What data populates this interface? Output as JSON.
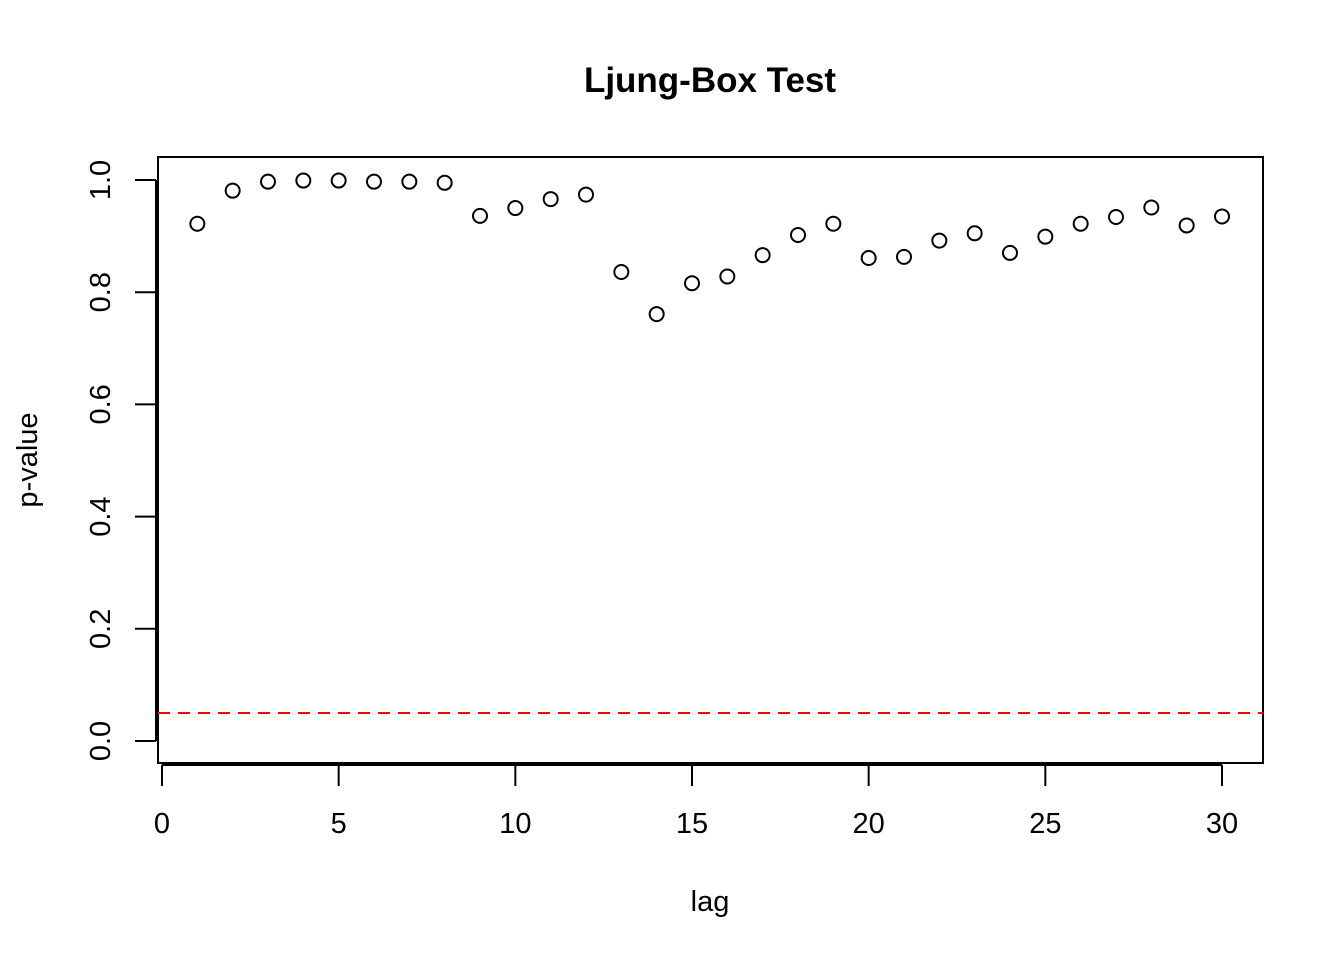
{
  "chart_data": {
    "type": "scatter",
    "title": "Ljung-Box Test",
    "xlabel": "lag",
    "ylabel": "p-value",
    "xlim": [
      0,
      30
    ],
    "ylim": [
      0,
      1
    ],
    "x_ticks": [
      0,
      5,
      10,
      15,
      20,
      25,
      30
    ],
    "y_ticks": [
      0.0,
      0.2,
      0.4,
      0.6,
      0.8,
      1.0
    ],
    "y_tick_labels": [
      "0.0",
      "0.2",
      "0.4",
      "0.6",
      "0.8",
      "1.0"
    ],
    "grid": false,
    "legend": "none",
    "marker": "open-circle",
    "marker_color": "#000000",
    "series": [
      {
        "x": [
          1,
          2,
          3,
          4,
          5,
          6,
          7,
          8,
          9,
          10,
          11,
          12,
          13,
          14,
          15,
          16,
          17,
          18,
          19,
          20,
          21,
          22,
          23,
          24,
          25,
          26,
          27,
          28,
          29,
          30
        ],
        "y": [
          0.922,
          0.981,
          0.997,
          0.999,
          0.999,
          0.997,
          0.997,
          0.995,
          0.936,
          0.95,
          0.966,
          0.974,
          0.836,
          0.761,
          0.816,
          0.828,
          0.866,
          0.902,
          0.922,
          0.861,
          0.863,
          0.892,
          0.905,
          0.87,
          0.899,
          0.922,
          0.934,
          0.951,
          0.919,
          0.935
        ]
      }
    ],
    "reference_line": {
      "y": 0.05,
      "style": "dashed",
      "color": "#ff0000"
    }
  }
}
